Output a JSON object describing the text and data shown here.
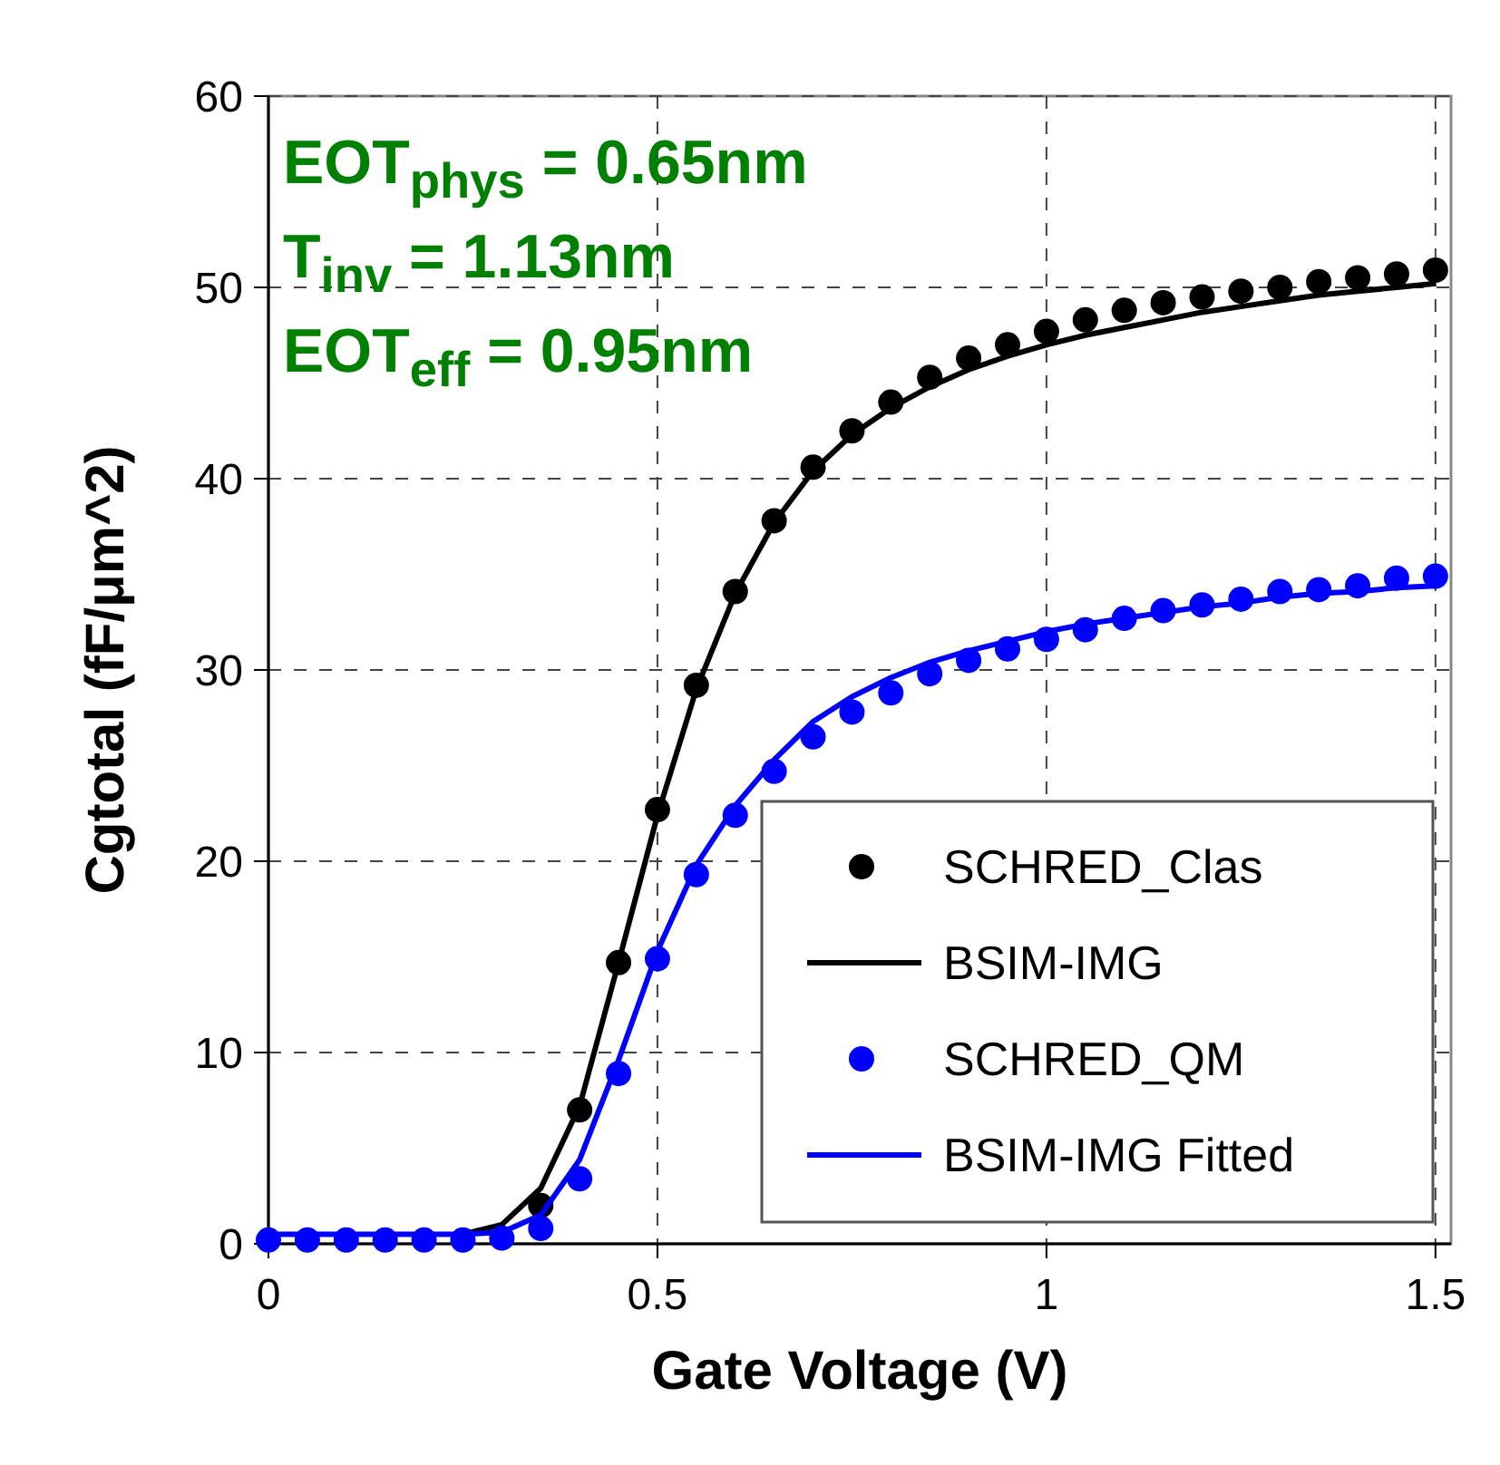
{
  "chart_data": {
    "type": "line",
    "xlabel": "Gate Voltage (V)",
    "ylabel": "Cgtotal (fF/μm^2)",
    "x": [
      0,
      0.05,
      0.1,
      0.15,
      0.2,
      0.25,
      0.3,
      0.35,
      0.4,
      0.45,
      0.5,
      0.55,
      0.6,
      0.65,
      0.7,
      0.75,
      0.8,
      0.85,
      0.9,
      0.95,
      1.0,
      1.05,
      1.1,
      1.15,
      1.2,
      1.25,
      1.3,
      1.35,
      1.4,
      1.45,
      1.5
    ],
    "series": [
      {
        "name": "SCHRED_Clas",
        "type": "scatter",
        "marker": "circle",
        "color": "#000000",
        "values": [
          null,
          null,
          null,
          null,
          null,
          null,
          null,
          2.0,
          7.0,
          14.7,
          22.7,
          29.2,
          34.1,
          37.8,
          40.6,
          42.5,
          44.0,
          45.3,
          46.3,
          47.0,
          47.7,
          48.3,
          48.8,
          49.2,
          49.5,
          49.8,
          50.0,
          50.3,
          50.5,
          50.7,
          50.9
        ]
      },
      {
        "name": "BSIM-IMG",
        "line_style": "solid",
        "color": "#000000",
        "values": [
          null,
          null,
          null,
          null,
          null,
          0.5,
          1.0,
          2.9,
          7.2,
          14.7,
          22.4,
          29.0,
          34.0,
          37.7,
          40.4,
          42.3,
          43.7,
          44.8,
          45.7,
          46.4,
          47.0,
          47.5,
          47.9,
          48.3,
          48.7,
          49.0,
          49.3,
          49.6,
          49.8,
          50.0,
          50.2
        ]
      },
      {
        "name": "SCHRED_QM",
        "type": "scatter",
        "marker": "circle",
        "color": "#0000ff",
        "values": [
          0.2,
          0.2,
          0.2,
          0.2,
          0.2,
          0.2,
          0.3,
          0.8,
          3.4,
          8.9,
          14.9,
          19.3,
          22.4,
          24.7,
          26.5,
          27.8,
          28.8,
          29.8,
          30.5,
          31.1,
          31.6,
          32.1,
          32.7,
          33.1,
          33.4,
          33.7,
          34.1,
          34.2,
          34.4,
          34.8,
          34.9
        ]
      },
      {
        "name": "BSIM-IMG Fitted",
        "line_style": "solid",
        "color": "#0000ff",
        "values": [
          0.5,
          0.5,
          0.5,
          0.5,
          0.5,
          0.5,
          0.6,
          1.5,
          4.4,
          9.6,
          15.3,
          19.8,
          22.9,
          25.3,
          27.3,
          28.6,
          29.6,
          30.4,
          31.0,
          31.5,
          32.0,
          32.4,
          32.7,
          33.0,
          33.3,
          33.5,
          33.8,
          34.0,
          34.1,
          34.3,
          34.4
        ]
      }
    ],
    "xlim": [
      0,
      1.52
    ],
    "xticks": [
      0,
      0.5,
      1,
      1.5
    ],
    "ylim": [
      0,
      60
    ],
    "yticks": [
      0,
      10,
      20,
      30,
      40,
      50,
      60
    ],
    "grid": true,
    "legend": "bottom right",
    "annotations": [
      "EOT$_{phys}$ = 0.65nm",
      "T$_{inv}$ = 1.13nm",
      "EOT$_{eff}$ = 0.95nm"
    ]
  }
}
